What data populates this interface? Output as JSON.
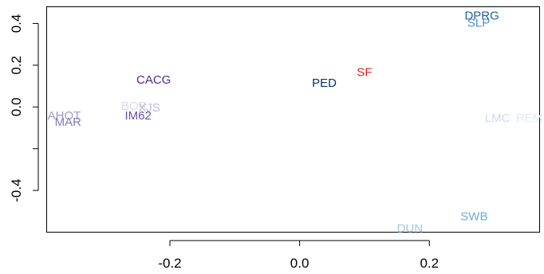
{
  "chart_data": {
    "type": "scatter",
    "title": "",
    "xlabel": "",
    "ylabel": "",
    "xlim": [
      -0.39,
      0.37
    ],
    "ylim": [
      -0.6,
      0.48
    ],
    "grid": false,
    "x_ticks": [
      -0.2,
      0.0,
      0.2
    ],
    "x_tick_labels": [
      "-0.2",
      "0.0",
      "0.2"
    ],
    "y_ticks": [
      -0.4,
      -0.2,
      0.0,
      0.2,
      0.4
    ],
    "y_tick_labels": [
      "-0.4",
      "",
      "0.0",
      "0.2",
      "0.4"
    ],
    "points": [
      {
        "label": "DPRG",
        "x": 0.281,
        "y": 0.438,
        "color": "#1f5fa8"
      },
      {
        "label": "SLP",
        "x": 0.276,
        "y": 0.404,
        "color": "#4a8fcf"
      },
      {
        "label": "SF",
        "x": 0.1,
        "y": 0.168,
        "color": "#e31a1c"
      },
      {
        "label": "PED",
        "x": 0.038,
        "y": 0.115,
        "color": "#08306b"
      },
      {
        "label": "CACG",
        "x": -0.225,
        "y": 0.13,
        "color": "#54278f"
      },
      {
        "label": "BOR",
        "x": -0.255,
        "y": 0.004,
        "color": "#dadaeb"
      },
      {
        "label": "XJS",
        "x": -0.232,
        "y": -0.002,
        "color": "#bcbddc"
      },
      {
        "label": "IM62",
        "x": -0.249,
        "y": -0.04,
        "color": "#6a51a3"
      },
      {
        "label": "AHOT",
        "x": -0.363,
        "y": -0.04,
        "color": "#9e9ac8"
      },
      {
        "label": "MAR",
        "x": -0.357,
        "y": -0.072,
        "color": "#807dba"
      },
      {
        "label": "LMC",
        "x": 0.305,
        "y": -0.052,
        "color": "#c6dbef"
      },
      {
        "label": "REM",
        "x": 0.354,
        "y": -0.052,
        "color": "#deebf7"
      },
      {
        "label": "SWB",
        "x": 0.269,
        "y": -0.523,
        "color": "#6baed6"
      },
      {
        "label": "DUN",
        "x": 0.17,
        "y": -0.58,
        "color": "#9ecae1"
      }
    ]
  }
}
